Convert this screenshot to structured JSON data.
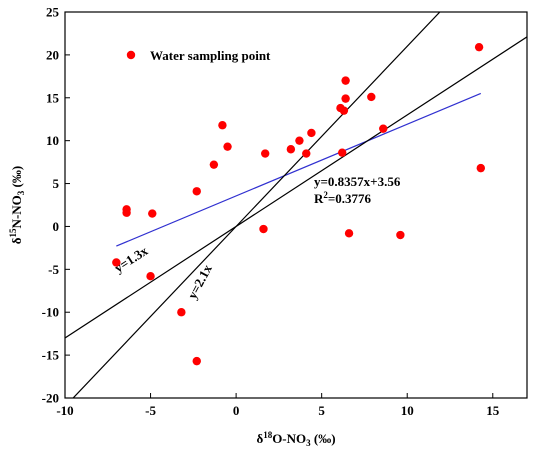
{
  "chart_data": {
    "type": "scatter",
    "xlabel": {
      "main": "δ",
      "sup": "18",
      "mid": "O-NO",
      "sub": "3",
      "tail": " (‰)"
    },
    "ylabel": {
      "main": "δ",
      "sup": "15",
      "mid": "N-NO",
      "sub": "3",
      "tail": " (‰)"
    },
    "xlim": [
      -10,
      17
    ],
    "ylim": [
      -20,
      25
    ],
    "xticks": [
      -10,
      -5,
      0,
      5,
      10,
      15
    ],
    "yticks": [
      -20,
      -15,
      -10,
      -5,
      0,
      5,
      10,
      15,
      20,
      25
    ],
    "legend": {
      "placement": "top-left",
      "label": "Water sampling point",
      "color": "#ff0000"
    },
    "series": [
      {
        "name": "Water sampling point",
        "color": "#ff0000",
        "points": [
          [
            -7.0,
            -4.2
          ],
          [
            -6.4,
            2.0
          ],
          [
            -6.4,
            1.6
          ],
          [
            -4.9,
            1.5
          ],
          [
            -5.0,
            -5.8
          ],
          [
            -3.2,
            -10.0
          ],
          [
            -2.3,
            4.1
          ],
          [
            -2.3,
            -15.7
          ],
          [
            -1.3,
            7.2
          ],
          [
            -0.8,
            11.8
          ],
          [
            -0.5,
            9.3
          ],
          [
            1.7,
            8.5
          ],
          [
            1.6,
            -0.3
          ],
          [
            3.2,
            9.0
          ],
          [
            3.7,
            10.0
          ],
          [
            4.1,
            8.5
          ],
          [
            4.4,
            10.9
          ],
          [
            6.1,
            13.8
          ],
          [
            6.2,
            8.6
          ],
          [
            6.3,
            13.5
          ],
          [
            6.4,
            14.9
          ],
          [
            6.4,
            17.0
          ],
          [
            6.6,
            -0.8
          ],
          [
            7.9,
            15.1
          ],
          [
            8.6,
            11.4
          ],
          [
            9.6,
            -1.0
          ],
          [
            14.2,
            20.9
          ],
          [
            14.3,
            6.8
          ]
        ]
      }
    ],
    "lines": [
      {
        "name": "regression",
        "slope": 0.8357,
        "intercept": 3.56,
        "x_range": [
          -7,
          14.3
        ],
        "color": "#3030d0"
      },
      {
        "name": "y=1.3x",
        "slope": 1.3,
        "intercept": 0,
        "x_range": [
          -10,
          19.2
        ],
        "color": "#000000"
      },
      {
        "name": "y=2.1x",
        "slope": 2.1,
        "intercept": 0,
        "x_range": [
          -9.52,
          11.9
        ],
        "color": "#000000"
      }
    ],
    "annotations": {
      "regression_eq": "y=0.8357x+3.56",
      "r2_prefix": "R",
      "r2_sup": "2",
      "r2_value": "=0.3776",
      "line_13": "y=1.3x",
      "line_21": "y=2.1x"
    }
  }
}
